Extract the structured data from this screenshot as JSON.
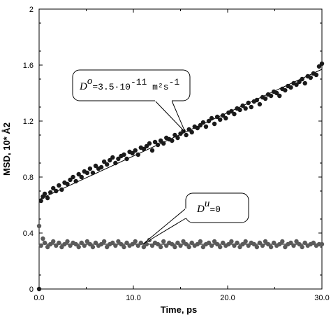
{
  "chart_data": {
    "type": "scatter",
    "title": "",
    "xlabel": "Time, ps",
    "ylabel": "MSD, 10* Å2",
    "xlim": [
      0,
      30
    ],
    "ylim": [
      0,
      2
    ],
    "x_ticks": [
      "0.0",
      "10.0",
      "20.0",
      "30.0"
    ],
    "y_ticks": [
      "0",
      "0.4",
      "0.8",
      "1.2",
      "1.6",
      "2"
    ],
    "grid": false,
    "series": [
      {
        "color": "#1a1a1a",
        "fit_line": {
          "x": [
            0,
            30
          ],
          "y": [
            0.64,
            1.57
          ]
        },
        "points": {
          "x": [
            0.0,
            0.2,
            0.4,
            0.6,
            0.9,
            1.2,
            1.5,
            1.8,
            2.1,
            2.4,
            2.7,
            3.0,
            3.3,
            3.6,
            3.9,
            4.2,
            4.5,
            4.8,
            5.1,
            5.4,
            5.7,
            6.0,
            6.3,
            6.6,
            6.9,
            7.2,
            7.5,
            7.8,
            8.1,
            8.4,
            8.7,
            9.0,
            9.3,
            9.6,
            9.9,
            10.2,
            10.5,
            10.8,
            11.1,
            11.4,
            11.7,
            12.0,
            12.3,
            12.6,
            12.9,
            13.2,
            13.5,
            13.8,
            14.1,
            14.4,
            14.7,
            15.0,
            15.3,
            15.6,
            15.9,
            16.2,
            16.5,
            16.8,
            17.1,
            17.4,
            17.7,
            18.0,
            18.3,
            18.6,
            18.9,
            19.2,
            19.5,
            19.8,
            20.1,
            20.4,
            20.7,
            21.0,
            21.3,
            21.6,
            21.9,
            22.2,
            22.5,
            22.8,
            23.1,
            23.4,
            23.7,
            24.0,
            24.3,
            24.6,
            24.9,
            25.2,
            25.5,
            25.8,
            26.1,
            26.4,
            26.7,
            27.0,
            27.3,
            27.6,
            27.9,
            28.2,
            28.5,
            28.8,
            29.1,
            29.4,
            29.7,
            30.0
          ],
          "y": [
            0.0,
            0.63,
            0.66,
            0.68,
            0.65,
            0.69,
            0.72,
            0.7,
            0.74,
            0.71,
            0.76,
            0.75,
            0.78,
            0.8,
            0.77,
            0.82,
            0.8,
            0.84,
            0.83,
            0.86,
            0.83,
            0.88,
            0.86,
            0.87,
            0.91,
            0.89,
            0.92,
            0.94,
            0.9,
            0.93,
            0.95,
            0.96,
            0.93,
            0.98,
            0.97,
            0.99,
            0.96,
            1.01,
            1.0,
            1.02,
            1.04,
            0.99,
            1.05,
            1.03,
            1.06,
            1.04,
            1.08,
            1.07,
            1.06,
            1.1,
            1.08,
            1.11,
            1.13,
            1.1,
            1.14,
            1.12,
            1.16,
            1.15,
            1.17,
            1.19,
            1.16,
            1.2,
            1.22,
            1.18,
            1.23,
            1.21,
            1.24,
            1.22,
            1.26,
            1.27,
            1.25,
            1.29,
            1.28,
            1.31,
            1.29,
            1.33,
            1.3,
            1.34,
            1.35,
            1.32,
            1.37,
            1.36,
            1.39,
            1.38,
            1.41,
            1.4,
            1.38,
            1.43,
            1.42,
            1.45,
            1.44,
            1.47,
            1.46,
            1.48,
            1.5,
            1.47,
            1.52,
            1.51,
            1.54,
            1.53,
            1.59,
            1.61
          ]
        }
      },
      {
        "color": "#5a5a5a",
        "fit_line": {
          "x": [
            0,
            30
          ],
          "y": [
            0.32,
            0.32
          ]
        },
        "points": {
          "x": [
            0.0,
            0.2,
            0.4,
            0.6,
            0.9,
            1.2,
            1.5,
            1.8,
            2.1,
            2.4,
            2.7,
            3.0,
            3.3,
            3.6,
            3.9,
            4.2,
            4.5,
            4.8,
            5.1,
            5.4,
            5.7,
            6.0,
            6.3,
            6.6,
            6.9,
            7.2,
            7.5,
            7.8,
            8.1,
            8.4,
            8.7,
            9.0,
            9.3,
            9.6,
            9.9,
            10.2,
            10.5,
            10.8,
            11.1,
            11.4,
            11.7,
            12.0,
            12.3,
            12.6,
            12.9,
            13.2,
            13.5,
            13.8,
            14.1,
            14.4,
            14.7,
            15.0,
            15.3,
            15.6,
            15.9,
            16.2,
            16.5,
            16.8,
            17.1,
            17.4,
            17.7,
            18.0,
            18.3,
            18.6,
            18.9,
            19.2,
            19.5,
            19.8,
            20.1,
            20.4,
            20.7,
            21.0,
            21.3,
            21.6,
            21.9,
            22.2,
            22.5,
            22.8,
            23.1,
            23.4,
            23.7,
            24.0,
            24.3,
            24.6,
            24.9,
            25.2,
            25.5,
            25.8,
            26.1,
            26.4,
            26.7,
            27.0,
            27.3,
            27.6,
            27.9,
            28.2,
            28.5,
            28.8,
            29.1,
            29.4,
            29.7,
            30.0
          ],
          "y": [
            0.45,
            0.31,
            0.36,
            0.33,
            0.3,
            0.32,
            0.34,
            0.31,
            0.33,
            0.3,
            0.32,
            0.34,
            0.31,
            0.33,
            0.32,
            0.3,
            0.33,
            0.31,
            0.34,
            0.32,
            0.3,
            0.33,
            0.31,
            0.32,
            0.34,
            0.3,
            0.32,
            0.33,
            0.31,
            0.34,
            0.32,
            0.3,
            0.33,
            0.31,
            0.32,
            0.34,
            0.31,
            0.33,
            0.3,
            0.32,
            0.35,
            0.31,
            0.33,
            0.32,
            0.3,
            0.34,
            0.31,
            0.33,
            0.32,
            0.3,
            0.33,
            0.31,
            0.34,
            0.32,
            0.3,
            0.33,
            0.31,
            0.32,
            0.34,
            0.3,
            0.32,
            0.33,
            0.31,
            0.34,
            0.32,
            0.3,
            0.33,
            0.31,
            0.32,
            0.34,
            0.31,
            0.33,
            0.3,
            0.32,
            0.34,
            0.31,
            0.33,
            0.32,
            0.3,
            0.33,
            0.31,
            0.34,
            0.32,
            0.3,
            0.33,
            0.31,
            0.32,
            0.34,
            0.3,
            0.32,
            0.33,
            0.31,
            0.34,
            0.32,
            0.3,
            0.33,
            0.31,
            0.32,
            0.33,
            0.31,
            0.32,
            0.32
          ]
        }
      }
    ],
    "annotations": [
      {
        "text_symbol": "D",
        "text_super": "o",
        "text_value": "=3.5·10",
        "text_exp": "-11",
        "text_unit": " m²s",
        "text_unit_exp": "-1",
        "target_series": 0,
        "target_x": 15.5
      },
      {
        "text_symbol": "D",
        "text_super": "u",
        "text_value": "=0",
        "target_series": 1,
        "target_x": 11.0
      }
    ]
  }
}
